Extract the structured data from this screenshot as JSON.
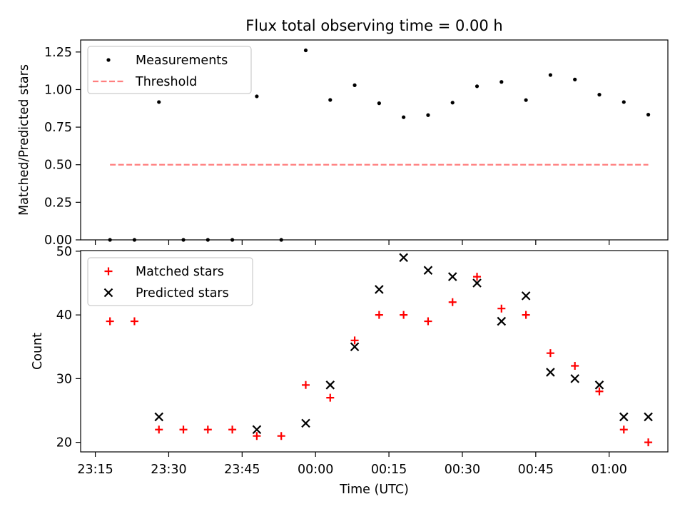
{
  "chart_data": [
    {
      "type": "scatter",
      "title": "Flux total observing time = 0.00 h",
      "xlabel": "",
      "ylabel": "Matched/Predicted stars",
      "xlim": [
        "23:12",
        "01:12"
      ],
      "ylim": [
        0,
        1.33
      ],
      "yticks": [
        "0.00",
        "0.25",
        "0.50",
        "0.75",
        "1.00",
        "1.25"
      ],
      "grid": false,
      "legend_position": "top-left",
      "series": [
        {
          "name": "Measurements",
          "marker": "dot",
          "color": "#000000",
          "x": [
            "23:18",
            "23:23",
            "23:28",
            "23:33",
            "23:38",
            "23:43",
            "23:48",
            "23:53",
            "23:58",
            "00:03",
            "00:08",
            "00:13",
            "00:18",
            "00:23",
            "00:28",
            "00:33",
            "00:38",
            "00:43",
            "00:48",
            "00:53",
            "00:58",
            "01:03",
            "01:08"
          ],
          "y": [
            0.0,
            0.0,
            0.917,
            0.0,
            0.0,
            0.0,
            0.955,
            0.0,
            1.261,
            0.931,
            1.029,
            0.909,
            0.816,
            0.83,
            0.913,
            1.022,
            1.051,
            0.93,
            1.097,
            1.067,
            0.966,
            0.917,
            0.833
          ]
        },
        {
          "name": "Threshold",
          "style": "dashed",
          "color": "#ff7f7f",
          "x": [
            "23:18",
            "01:08"
          ],
          "y": [
            0.5,
            0.5
          ]
        }
      ]
    },
    {
      "type": "scatter",
      "title": "",
      "xlabel": "Time (UTC)",
      "ylabel": "Count",
      "xlim": [
        "23:12",
        "01:12"
      ],
      "ylim": [
        18.5,
        50.1
      ],
      "xticks": [
        "23:15",
        "23:30",
        "23:45",
        "00:00",
        "00:15",
        "00:30",
        "00:45",
        "01:00"
      ],
      "yticks": [
        "20",
        "30",
        "40",
        "50"
      ],
      "grid": false,
      "legend_position": "top-left",
      "series": [
        {
          "name": "Matched stars",
          "marker": "plus",
          "color": "#ff0000",
          "x": [
            "23:18",
            "23:23",
            "23:28",
            "23:33",
            "23:38",
            "23:43",
            "23:48",
            "23:53",
            "23:58",
            "00:03",
            "00:08",
            "00:13",
            "00:18",
            "00:23",
            "00:28",
            "00:33",
            "00:38",
            "00:43",
            "00:48",
            "00:53",
            "00:58",
            "01:03",
            "01:08"
          ],
          "y": [
            39,
            39,
            22,
            22,
            22,
            22,
            21,
            21,
            29,
            27,
            36,
            40,
            40,
            39,
            42,
            46,
            41,
            40,
            34,
            32,
            28,
            22,
            20
          ]
        },
        {
          "name": "Predicted stars",
          "marker": "x",
          "color": "#000000",
          "x": [
            "23:28",
            "23:48",
            "23:58",
            "00:03",
            "00:08",
            "00:13",
            "00:18",
            "00:23",
            "00:28",
            "00:33",
            "00:38",
            "00:43",
            "00:48",
            "00:53",
            "00:58",
            "01:03",
            "01:08"
          ],
          "y": [
            24,
            22,
            23,
            29,
            35,
            44,
            49,
            47,
            46,
            45,
            39,
            43,
            31,
            30,
            29,
            24,
            24
          ]
        }
      ]
    }
  ]
}
